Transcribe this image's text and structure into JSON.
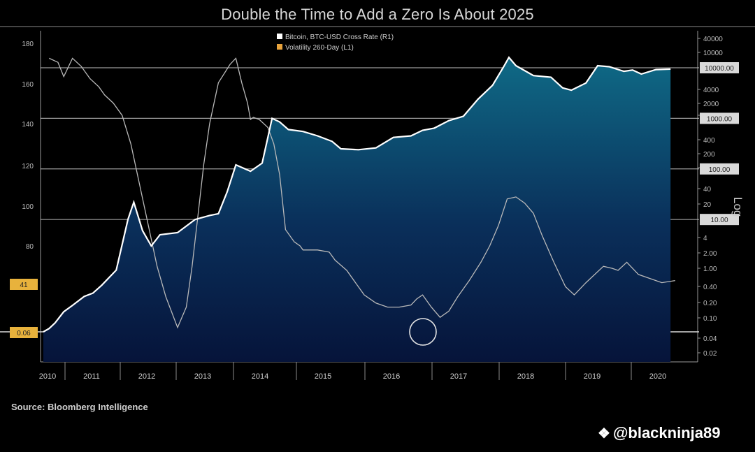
{
  "chart_data": {
    "type": "area",
    "title": "Double the Time to Add a Zero Is About 2025",
    "source": "Source: Bloomberg Intelligence",
    "legend": {
      "placement": "top",
      "items": [
        {
          "name": "Bitcoin, BTC-USD Cross Rate (R1)",
          "color": "#ffffff"
        },
        {
          "name": "Volatility 260-Day (L1)",
          "color": "#e8a33c"
        }
      ]
    },
    "x_ticks": [
      "2010",
      "2011",
      "2012",
      "2013",
      "2014",
      "2015",
      "2016",
      "2017",
      "2018",
      "2019",
      "2020"
    ],
    "x_range": [
      2010.0,
      2020.83
    ],
    "y_right_label": "Log",
    "y_left_ticks": [
      "180",
      "160",
      "140",
      "120",
      "100",
      "80"
    ],
    "y_right_ticks": [
      "40000",
      "10000",
      "4000",
      "2000",
      "1000",
      "400",
      "200",
      "100",
      "40",
      "20",
      "4",
      "2.00",
      "1.00",
      "0.40",
      "0.20",
      "0.10",
      "0.04",
      "0.02"
    ],
    "y_right_badges": [
      "10000.00",
      "1000.00",
      "100.00",
      "10.00"
    ],
    "y_left_badges": [
      "41",
      "0.06"
    ],
    "grid": "horizontal reference lines at price decades",
    "price_series": {
      "name": "Bitcoin, BTC-USD Cross Rate (R1)",
      "x": [
        2010.0,
        2010.1,
        2010.2,
        2010.35,
        2010.5,
        2010.7,
        2010.85,
        2011.0,
        2011.25,
        2011.45,
        2011.55,
        2011.7,
        2011.85,
        2012.0,
        2012.3,
        2012.6,
        2012.85,
        2013.0,
        2013.15,
        2013.3,
        2013.55,
        2013.75,
        2013.92,
        2014.05,
        2014.2,
        2014.45,
        2014.7,
        2014.95,
        2015.1,
        2015.4,
        2015.7,
        2016.0,
        2016.3,
        2016.5,
        2016.7,
        2016.95,
        2017.2,
        2017.45,
        2017.7,
        2017.88,
        2017.98,
        2018.1,
        2018.4,
        2018.7,
        2018.9,
        2019.05,
        2019.3,
        2019.5,
        2019.7,
        2019.95,
        2020.1,
        2020.25,
        2020.5,
        2020.75
      ],
      "y": [
        0.06,
        0.07,
        0.09,
        0.15,
        0.2,
        0.3,
        0.35,
        0.5,
        1.0,
        10,
        22,
        6,
        3,
        5,
        5.5,
        10,
        12,
        13,
        35,
        120,
        90,
        130,
        1000,
        850,
        600,
        550,
        450,
        350,
        250,
        240,
        260,
        420,
        450,
        580,
        640,
        900,
        1100,
        2400,
        4500,
        10000,
        16000,
        11000,
        7000,
        6500,
        4000,
        3600,
        5000,
        11000,
        10500,
        8500,
        9000,
        7500,
        9200,
        9400
      ]
    },
    "volatility_series": {
      "name": "Volatility 260-Day (L1)",
      "x": [
        2010.1,
        2010.25,
        2010.35,
        2010.5,
        2010.65,
        2010.8,
        2010.95,
        2011.05,
        2011.2,
        2011.35,
        2011.5,
        2011.65,
        2011.8,
        2011.95,
        2012.1,
        2012.3,
        2012.45,
        2012.55,
        2012.65,
        2012.75,
        2012.85,
        2013.0,
        2013.2,
        2013.3,
        2013.4,
        2013.5,
        2013.55,
        2013.6,
        2013.7,
        2013.85,
        2013.95,
        2014.05,
        2014.15,
        2014.3,
        2014.4,
        2014.45,
        2014.5,
        2014.7,
        2014.9,
        2015.0,
        2015.2,
        2015.35,
        2015.5,
        2015.7,
        2015.9,
        2016.1,
        2016.3,
        2016.4,
        2016.5,
        2016.65,
        2016.8,
        2016.95,
        2017.1,
        2017.3,
        2017.5,
        2017.65,
        2017.8,
        2017.95,
        2018.1,
        2018.25,
        2018.4,
        2018.55,
        2018.75,
        2018.95,
        2019.1,
        2019.3,
        2019.45,
        2019.6,
        2019.75,
        2019.85,
        2020.0,
        2020.2,
        2020.4,
        2020.6,
        2020.83
      ],
      "y": [
        172,
        170,
        163,
        172,
        168,
        162,
        158,
        154,
        150,
        144,
        130,
        110,
        90,
        70,
        55,
        40,
        50,
        70,
        95,
        120,
        140,
        160,
        169,
        172,
        160,
        150,
        142,
        143,
        142,
        138,
        130,
        115,
        88,
        82,
        80,
        78,
        78,
        78,
        77,
        73,
        68,
        62,
        56,
        52,
        50,
        50,
        51,
        54,
        56,
        50,
        45,
        48,
        55,
        63,
        72,
        80,
        90,
        103,
        104,
        101,
        96,
        85,
        72,
        60,
        56,
        62,
        66,
        70,
        69,
        68,
        72,
        66,
        64,
        62,
        63
      ]
    }
  }
}
